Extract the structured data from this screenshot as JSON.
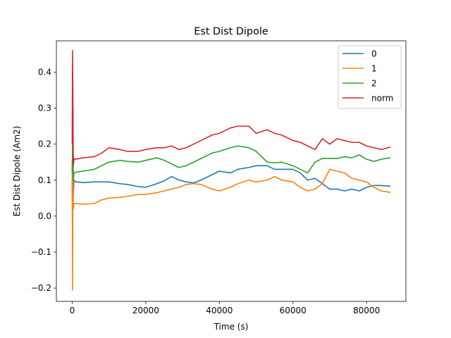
{
  "chart_data": {
    "type": "line",
    "title": "Est Dist Dipole",
    "xlabel": "Time (s)",
    "ylabel": "Est Dist Dipole (Am2)",
    "xlim": [
      -4300,
      90700
    ],
    "ylim": [
      -0.237,
      0.487
    ],
    "xticks": [
      0,
      20000,
      40000,
      60000,
      80000
    ],
    "xtick_labels": [
      "0",
      "20000",
      "40000",
      "60000",
      "80000"
    ],
    "yticks": [
      -0.2,
      -0.1,
      0.0,
      0.1,
      0.2,
      0.3,
      0.4
    ],
    "ytick_labels": [
      "−0.2",
      "−0.1",
      "0.0",
      "0.1",
      "0.2",
      "0.3",
      "0.4"
    ],
    "grid": false,
    "legend_position": "top-right",
    "series": [
      {
        "name": "0",
        "color": "#1f77b4",
        "x": [
          0,
          100,
          200,
          300,
          500,
          1000,
          3000,
          6000,
          8000,
          10000,
          13000,
          15000,
          18000,
          20000,
          23000,
          25000,
          27000,
          29000,
          31000,
          33000,
          35000,
          38000,
          40000,
          43000,
          45000,
          48000,
          50000,
          53000,
          55000,
          57000,
          60000,
          62000,
          64000,
          66000,
          68000,
          70000,
          72000,
          74000,
          76000,
          78000,
          80000,
          82000,
          84000,
          86500
        ],
        "y": [
          0.1,
          -0.07,
          0.3,
          0.06,
          0.1,
          0.095,
          0.093,
          0.095,
          0.095,
          0.095,
          0.09,
          0.088,
          0.082,
          0.08,
          0.09,
          0.098,
          0.11,
          0.1,
          0.095,
          0.092,
          0.1,
          0.115,
          0.125,
          0.12,
          0.13,
          0.135,
          0.14,
          0.14,
          0.13,
          0.13,
          0.13,
          0.12,
          0.1,
          0.105,
          0.09,
          0.075,
          0.075,
          0.07,
          0.075,
          0.07,
          0.08,
          0.085,
          0.085,
          0.083
        ]
      },
      {
        "name": "1",
        "color": "#ff7f0e",
        "x": [
          0,
          100,
          200,
          300,
          500,
          1000,
          3000,
          6000,
          8000,
          10000,
          13000,
          15000,
          18000,
          20000,
          23000,
          25000,
          27000,
          29000,
          31000,
          33000,
          35000,
          38000,
          40000,
          43000,
          45000,
          48000,
          50000,
          53000,
          55000,
          57000,
          60000,
          62000,
          64000,
          66000,
          68000,
          70000,
          72000,
          74000,
          76000,
          78000,
          80000,
          82000,
          84000,
          86500
        ],
        "y": [
          0.15,
          -0.205,
          0.2,
          0.02,
          0.035,
          0.035,
          0.033,
          0.035,
          0.045,
          0.05,
          0.052,
          0.055,
          0.06,
          0.06,
          0.065,
          0.07,
          0.075,
          0.08,
          0.088,
          0.09,
          0.088,
          0.075,
          0.07,
          0.08,
          0.09,
          0.1,
          0.095,
          0.1,
          0.11,
          0.1,
          0.095,
          0.08,
          0.07,
          0.075,
          0.09,
          0.13,
          0.125,
          0.12,
          0.105,
          0.1,
          0.095,
          0.08,
          0.07,
          0.066
        ]
      },
      {
        "name": "2",
        "color": "#2ca02c",
        "x": [
          0,
          100,
          200,
          300,
          500,
          1000,
          3000,
          6000,
          8000,
          10000,
          13000,
          15000,
          18000,
          20000,
          23000,
          25000,
          27000,
          29000,
          31000,
          33000,
          35000,
          38000,
          40000,
          43000,
          45000,
          48000,
          50000,
          53000,
          55000,
          57000,
          60000,
          62000,
          64000,
          66000,
          68000,
          70000,
          72000,
          74000,
          76000,
          78000,
          80000,
          82000,
          84000,
          86500
        ],
        "y": [
          0.12,
          0.2,
          0.16,
          0.1,
          0.12,
          0.122,
          0.125,
          0.13,
          0.14,
          0.15,
          0.155,
          0.152,
          0.15,
          0.155,
          0.162,
          0.155,
          0.145,
          0.135,
          0.14,
          0.15,
          0.16,
          0.175,
          0.18,
          0.19,
          0.195,
          0.19,
          0.18,
          0.15,
          0.148,
          0.15,
          0.14,
          0.13,
          0.12,
          0.15,
          0.16,
          0.16,
          0.16,
          0.165,
          0.162,
          0.17,
          0.158,
          0.152,
          0.158,
          0.162
        ]
      },
      {
        "name": "norm",
        "color": "#d62728",
        "x": [
          0,
          100,
          200,
          300,
          500,
          1000,
          3000,
          6000,
          8000,
          10000,
          13000,
          15000,
          18000,
          20000,
          23000,
          25000,
          27000,
          29000,
          31000,
          33000,
          35000,
          38000,
          40000,
          43000,
          45000,
          48000,
          50000,
          53000,
          55000,
          57000,
          60000,
          62000,
          64000,
          66000,
          68000,
          70000,
          72000,
          74000,
          76000,
          78000,
          80000,
          82000,
          84000,
          86500
        ],
        "y": [
          0.2,
          0.46,
          0.3,
          0.14,
          0.16,
          0.158,
          0.162,
          0.165,
          0.175,
          0.19,
          0.185,
          0.18,
          0.18,
          0.185,
          0.19,
          0.19,
          0.195,
          0.185,
          0.19,
          0.2,
          0.21,
          0.225,
          0.23,
          0.245,
          0.25,
          0.25,
          0.23,
          0.24,
          0.23,
          0.225,
          0.21,
          0.205,
          0.195,
          0.185,
          0.215,
          0.2,
          0.215,
          0.21,
          0.205,
          0.205,
          0.195,
          0.19,
          0.185,
          0.192
        ]
      }
    ]
  }
}
